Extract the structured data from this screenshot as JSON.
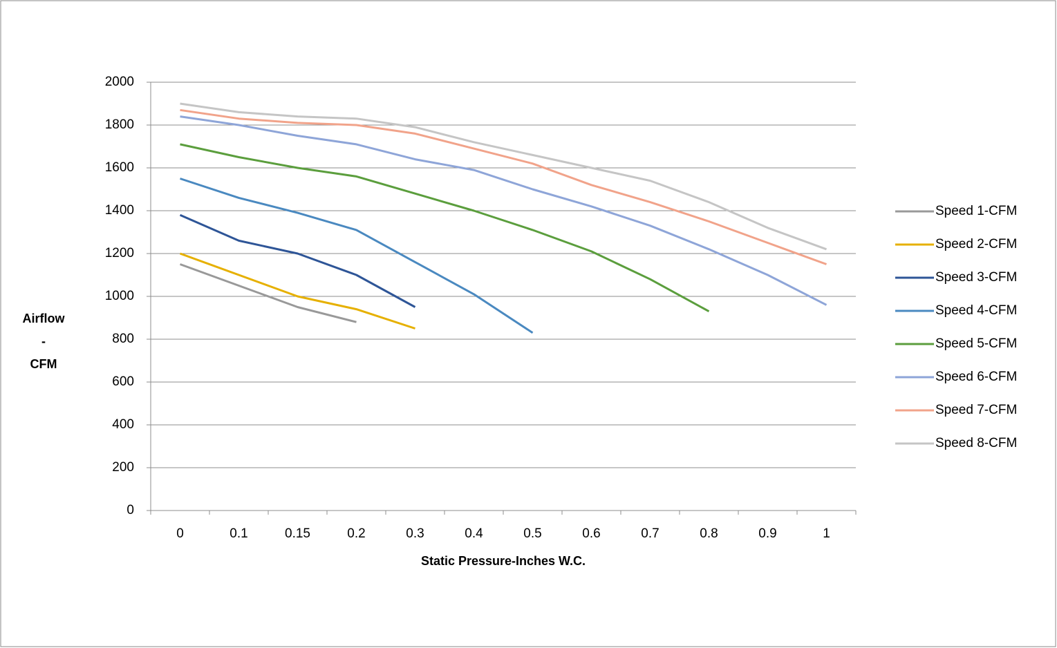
{
  "chart_data": {
    "type": "line",
    "x_label": "Static Pressure-Inches W.C.",
    "y_label": [
      "Airflow",
      "-",
      "CFM"
    ],
    "categories": [
      "0",
      "0.1",
      "0.15",
      "0.2",
      "0.3",
      "0.4",
      "0.5",
      "0.6",
      "0.7",
      "0.8",
      "0.9",
      "1"
    ],
    "series": [
      {
        "name": "Speed 1-CFM",
        "color": "#999999",
        "values": [
          1150,
          1050,
          950,
          880,
          null,
          null,
          null,
          null,
          null,
          null,
          null,
          null
        ]
      },
      {
        "name": "Speed 2-CFM",
        "color": "#e6b000",
        "values": [
          1200,
          1100,
          1000,
          940,
          850,
          null,
          null,
          null,
          null,
          null,
          null,
          null
        ]
      },
      {
        "name": "Speed 3-CFM",
        "color": "#2e5597",
        "values": [
          1380,
          1260,
          1200,
          1100,
          950,
          null,
          null,
          null,
          null,
          null,
          null,
          null
        ]
      },
      {
        "name": "Speed 4-CFM",
        "color": "#4a89c0",
        "values": [
          1550,
          1460,
          1390,
          1310,
          1160,
          1010,
          830,
          null,
          null,
          null,
          null,
          null
        ]
      },
      {
        "name": "Speed 5-CFM",
        "color": "#5b9e3d",
        "values": [
          1710,
          1650,
          1600,
          1560,
          1480,
          1400,
          1310,
          1210,
          1080,
          930,
          null,
          null
        ]
      },
      {
        "name": "Speed 6-CFM",
        "color": "#8ea5d8",
        "values": [
          1840,
          1800,
          1750,
          1710,
          1640,
          1590,
          1500,
          1420,
          1330,
          1220,
          1100,
          960
        ]
      },
      {
        "name": "Speed 7-CFM",
        "color": "#f1a38a",
        "values": [
          1870,
          1830,
          1810,
          1800,
          1760,
          1690,
          1620,
          1520,
          1440,
          1350,
          1250,
          1150
        ]
      },
      {
        "name": "Speed 8-CFM",
        "color": "#c5c5c5",
        "values": [
          1900,
          1860,
          1840,
          1830,
          1790,
          1720,
          1660,
          1600,
          1540,
          1440,
          1320,
          1220
        ]
      }
    ],
    "ylim": [
      0,
      2000
    ],
    "yticks": [
      0,
      200,
      400,
      600,
      800,
      1000,
      1200,
      1400,
      1600,
      1800,
      2000
    ],
    "grid": true,
    "legend": "right"
  }
}
